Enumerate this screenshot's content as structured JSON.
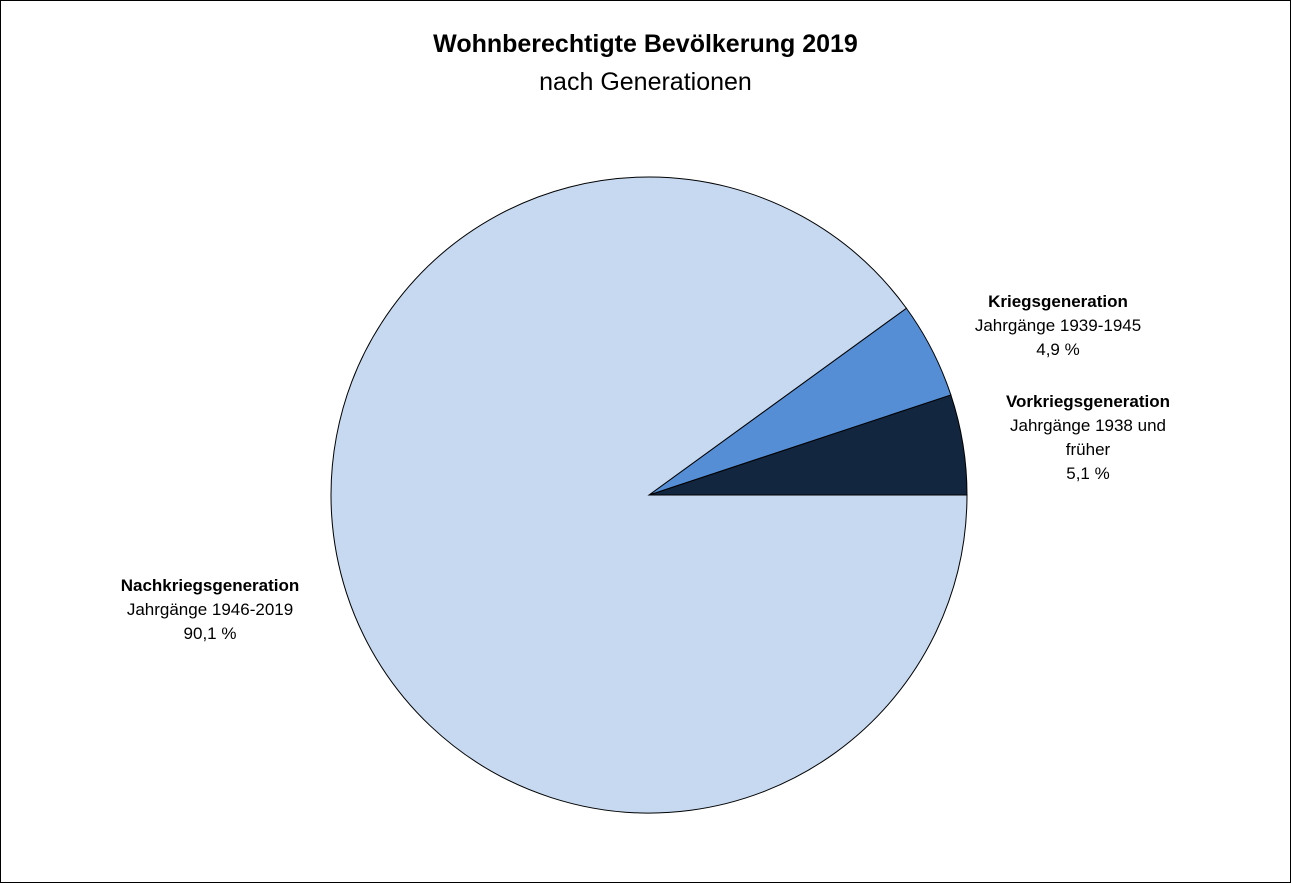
{
  "chart_data": {
    "type": "pie",
    "title": "Wohnberechtigte Bevölkerung 2019",
    "subtitle": "nach Generationen",
    "categories": [
      "Vorkriegsgeneration",
      "Kriegsgeneration",
      "Nachkriegsgeneration"
    ],
    "sublabels": [
      "Jahrgänge 1938 und früher",
      "Jahrgänge 1939-1945",
      "Jahrgänge 1946-2019"
    ],
    "values": [
      5.1,
      4.9,
      90.1
    ],
    "value_labels": [
      "5,1 %",
      "4,9 %",
      "90,1 %"
    ],
    "colors": [
      "#132640",
      "#558ed5",
      "#c6d9f1"
    ]
  }
}
